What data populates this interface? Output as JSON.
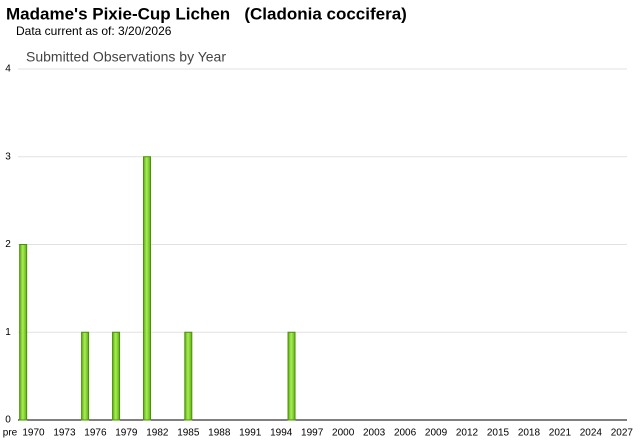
{
  "chart_data": {
    "type": "bar",
    "title": "Madame's Pixie-Cup Lichen   (Cladonia coccifera)",
    "subtitle": "Data current as of: 3/20/2026",
    "plot_title": "Submitted Observations by Year",
    "categories": [
      "pre",
      "1970",
      null,
      null,
      "1973",
      null,
      null,
      "1976",
      null,
      null,
      "1979",
      null,
      null,
      "1982",
      null,
      null,
      "1985",
      null,
      null,
      "1988",
      null,
      null,
      "1991",
      null,
      null,
      "1994",
      null,
      null,
      "1997",
      null,
      null,
      "2000",
      null,
      null,
      "2003",
      null,
      null,
      "2006",
      null,
      null,
      "2009",
      null,
      null,
      "2012",
      null,
      null,
      "2015",
      null,
      null,
      "2018",
      null,
      null,
      "2021",
      null,
      null,
      "2024",
      null,
      null,
      "2027"
    ],
    "values": [
      2,
      0,
      0,
      0,
      0,
      0,
      1,
      0,
      0,
      1,
      0,
      0,
      3,
      0,
      0,
      0,
      1,
      0,
      0,
      0,
      0,
      0,
      0,
      0,
      0,
      0,
      1,
      0,
      0,
      0,
      0,
      0,
      0,
      0,
      0,
      0,
      0,
      0,
      0,
      0,
      0,
      0,
      0,
      0,
      0,
      0,
      0,
      0,
      0,
      0,
      0,
      0,
      0,
      0,
      0,
      0,
      0,
      0,
      0
    ],
    "color": "#7ed321",
    "ylim": [
      0,
      4
    ],
    "yticks": [
      0,
      1,
      2,
      3,
      4
    ],
    "grid": true
  }
}
